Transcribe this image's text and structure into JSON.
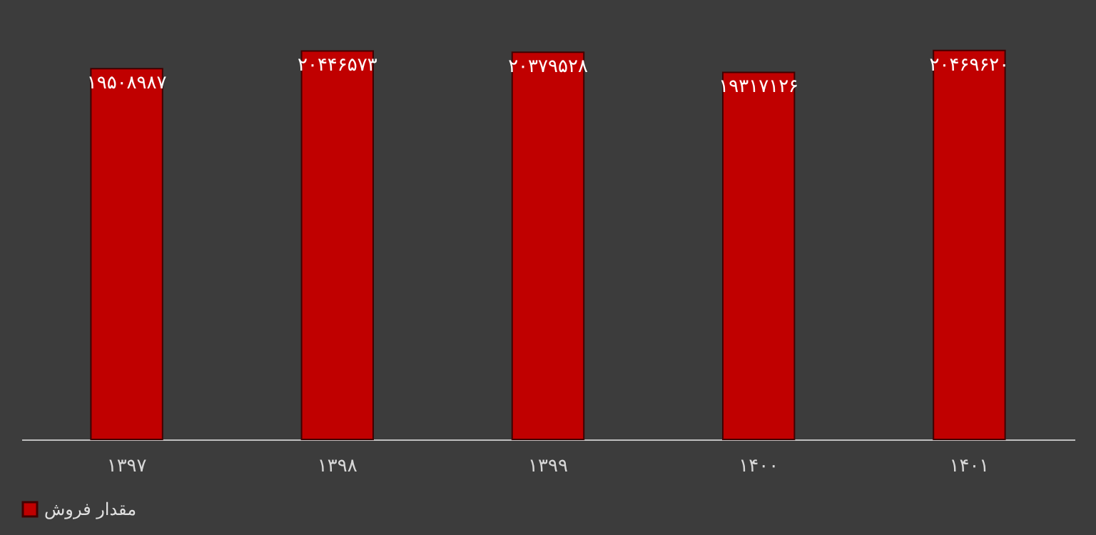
{
  "chart_data": {
    "type": "bar",
    "categories": [
      "۱۳۹۷",
      "۱۳۹۸",
      "۱۳۹۹",
      "۱۴۰۰",
      "۱۴۰۱"
    ],
    "series": [
      {
        "name": "مقدار فروش",
        "color": "#c00000",
        "values": [
          19508987,
          20446573,
          20379528,
          19317126,
          20469620
        ],
        "value_labels": [
          "۱۹۵۰۸۹۸۷",
          "۲۰۴۴۶۵۷۳",
          "۲۰۳۷۹۵۲۸",
          "۱۹۳۱۷۱۲۶",
          "۲۰۴۶۹۶۲۰"
        ]
      }
    ],
    "legend": "bottom",
    "grid": false,
    "tick_labels": "x"
  }
}
